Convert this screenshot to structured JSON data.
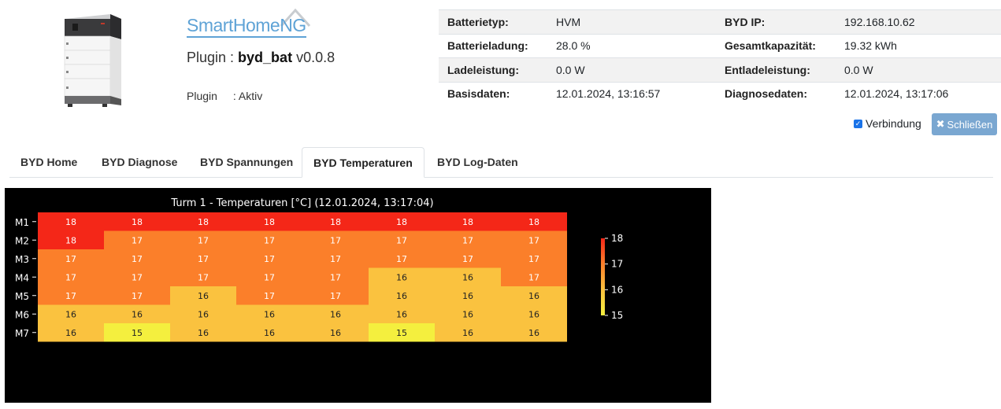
{
  "plugin": {
    "prefix": "Plugin : ",
    "name": "byd_bat",
    "version": "v0.0.8",
    "status_label": "Plugin",
    "status_value": ": Aktiv"
  },
  "logo": {
    "text": "SmartHomeNG"
  },
  "info": {
    "rows": [
      {
        "l1": "Batterietyp:",
        "v1": "HVM",
        "l2": "BYD IP:",
        "v2": "192.168.10.62"
      },
      {
        "l1": "Batterieladung:",
        "v1": "28.0 %",
        "l2": "Gesamtkapazität:",
        "v2": "19.32 kWh"
      },
      {
        "l1": "Ladeleistung:",
        "v1": "0.0 W",
        "l2": "Entladeleistung:",
        "v2": "0.0 W"
      },
      {
        "l1": "Basisdaten:",
        "v1": "12.01.2024, 13:16:57",
        "l2": "Diagnosedaten:",
        "v2": "12.01.2024, 13:17:06"
      }
    ]
  },
  "connection": {
    "label": "Verbindung",
    "checked": true
  },
  "close_button": {
    "label": "Schließen",
    "icon": "close-x-icon"
  },
  "tabs": [
    {
      "label": "BYD Home",
      "active": false
    },
    {
      "label": "BYD Diagnose",
      "active": false
    },
    {
      "label": "BYD Spannungen",
      "active": false
    },
    {
      "label": "BYD Temperaturen",
      "active": true
    },
    {
      "label": "BYD Log-Daten",
      "active": false
    }
  ],
  "colors": {
    "accent": "#7aa7d1",
    "logo": "#5fa3d6",
    "heat_18": "#f42718",
    "heat_17": "#fb7f2a",
    "heat_16": "#fac23f",
    "heat_15": "#f4ef3e"
  },
  "chart_data": {
    "type": "heatmap",
    "title": "Turm 1 - Temperaturen [°C] (12.01.2024, 13:17:04)",
    "rows": [
      "M1",
      "M2",
      "M3",
      "M4",
      "M5",
      "M6",
      "M7"
    ],
    "values": [
      [
        18,
        18,
        18,
        18,
        18,
        18,
        18,
        18
      ],
      [
        18,
        17,
        17,
        17,
        17,
        17,
        17,
        17
      ],
      [
        17,
        17,
        17,
        17,
        17,
        17,
        17,
        17
      ],
      [
        17,
        17,
        17,
        17,
        17,
        16,
        16,
        17
      ],
      [
        17,
        17,
        16,
        17,
        17,
        16,
        16,
        16
      ],
      [
        16,
        16,
        16,
        16,
        16,
        16,
        16,
        16
      ],
      [
        16,
        15,
        16,
        16,
        16,
        15,
        16,
        16
      ]
    ],
    "colorbar": {
      "min": 15,
      "max": 18,
      "ticks": [
        "18",
        "17",
        "16",
        "15"
      ]
    },
    "cell_labels": true,
    "background": "#000000"
  }
}
